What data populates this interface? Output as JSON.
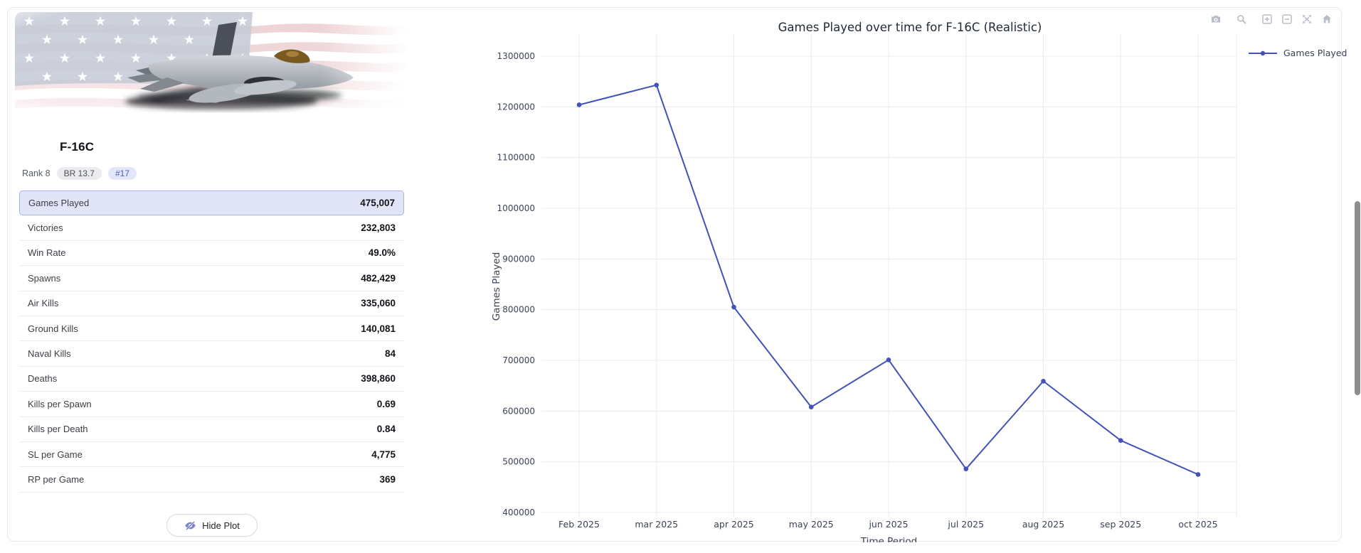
{
  "panel": {
    "title": "F-16C",
    "rank_label": "Rank 8",
    "br_badge": "BR 13.7",
    "position_badge": "#17",
    "stats": [
      {
        "label": "Games Played",
        "value": "475,007"
      },
      {
        "label": "Victories",
        "value": "232,803"
      },
      {
        "label": "Win Rate",
        "value": "49.0%"
      },
      {
        "label": "Spawns",
        "value": "482,429"
      },
      {
        "label": "Air Kills",
        "value": "335,060"
      },
      {
        "label": "Ground Kills",
        "value": "140,081"
      },
      {
        "label": "Naval Kills",
        "value": "84"
      },
      {
        "label": "Deaths",
        "value": "398,860"
      },
      {
        "label": "Kills per Spawn",
        "value": "0.69"
      },
      {
        "label": "Kills per Death",
        "value": "0.84"
      },
      {
        "label": "SL per Game",
        "value": "4,775"
      },
      {
        "label": "RP per Game",
        "value": "369"
      }
    ],
    "hide_plot_label": "Hide Plot"
  },
  "chart": {
    "legend": [
      "Games Played"
    ],
    "modebar_icons": [
      "camera",
      "zoom",
      "zoom-in",
      "zoom-out",
      "autoscale",
      "reset-axes"
    ]
  },
  "chart_data": {
    "type": "line",
    "title": "Games Played over time for F-16C (Realistic)",
    "xlabel": "Time Period",
    "ylabel": "Games Played",
    "categories": [
      "Feb 2025",
      "mar 2025",
      "apr 2025",
      "may 2025",
      "jun 2025",
      "jul 2025",
      "aug 2025",
      "sep 2025",
      "oct 2025"
    ],
    "series": [
      {
        "name": "Games Played",
        "values": [
          1204000,
          1243000,
          805000,
          608000,
          701000,
          486000,
          659000,
          542000,
          475000
        ]
      }
    ],
    "ylim": [
      400000,
      1300000
    ],
    "ytick_step": 100000,
    "grid": true,
    "legend_position": "top-right"
  },
  "colors": {
    "line": "#4152b9",
    "grid": "#ebecf0",
    "tick_text": "#3b4354",
    "highlight_bg": "#e2e5f7",
    "highlight_border": "#a8b1e2",
    "badge_indigo_text": "#4d5cc5",
    "modebar_icon": "#b9bdc7"
  }
}
